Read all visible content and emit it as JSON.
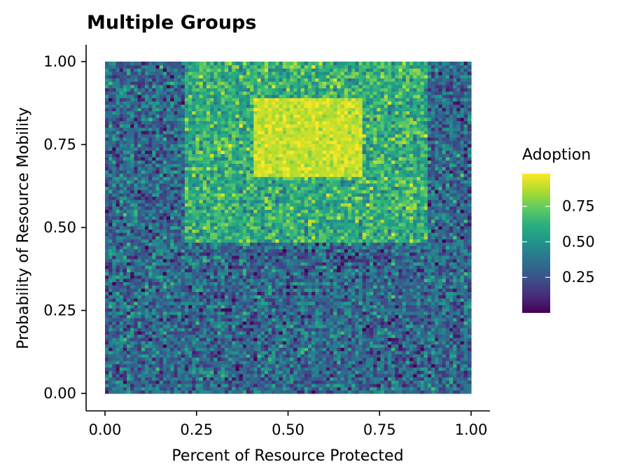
{
  "chart_data": {
    "type": "heatmap",
    "title": "Multiple Groups",
    "xlabel": "Percent of Resource Protected",
    "ylabel": "Probability of Resource Mobility",
    "xlim": [
      0,
      1
    ],
    "ylim": [
      0,
      1
    ],
    "x_ticks": [
      "0.00",
      "0.25",
      "0.50",
      "0.75",
      "1.00"
    ],
    "y_ticks": [
      "0.00",
      "0.25",
      "0.50",
      "0.75",
      "1.00"
    ],
    "grid": false,
    "colorscale": "viridis",
    "grid_cells": {
      "nx": 101,
      "ny": 101
    },
    "regions": [
      {
        "x_range": [
          0.0,
          1.0
        ],
        "y_range": [
          0.0,
          1.0
        ],
        "mean_adoption": 0.33
      },
      {
        "x_range": [
          0.22,
          0.88
        ],
        "y_range": [
          0.46,
          1.0
        ],
        "mean_adoption": 0.62
      },
      {
        "x_range": [
          0.41,
          0.7
        ],
        "y_range": [
          0.66,
          0.89
        ],
        "mean_adoption": 0.9
      }
    ],
    "legend": {
      "title": "Adoption",
      "position": "right",
      "ticks": [
        "0.75",
        "0.50",
        "0.25"
      ],
      "tick_values": [
        0.75,
        0.5,
        0.25
      ],
      "range": [
        0.0,
        0.98
      ]
    }
  }
}
